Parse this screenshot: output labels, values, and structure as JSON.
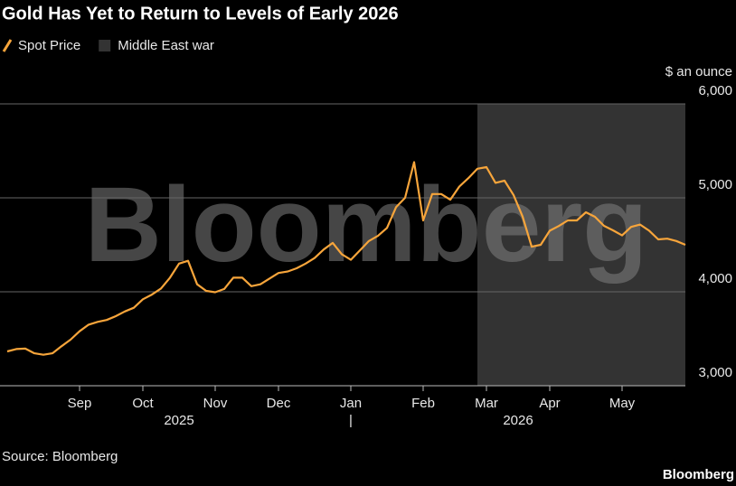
{
  "chart_data": {
    "type": "line",
    "title": "Gold Has Yet to Return to Levels of Early 2026",
    "y_axis_label": "$ an ounce",
    "source": "Source: Bloomberg",
    "logo": "Bloomberg",
    "watermark": "Bloomberg",
    "year_labels": [
      "2025",
      "|",
      "2026"
    ],
    "categories": [
      null,
      null,
      null,
      null,
      null,
      null,
      null,
      null,
      "Sep",
      null,
      null,
      null,
      null,
      null,
      null,
      "Oct",
      null,
      null,
      null,
      null,
      null,
      null,
      null,
      "Nov",
      null,
      null,
      null,
      null,
      null,
      null,
      "Dec",
      null,
      null,
      null,
      null,
      null,
      null,
      null,
      "Jan",
      null,
      null,
      null,
      null,
      null,
      null,
      null,
      "Feb",
      null,
      null,
      null,
      null,
      null,
      null,
      "Mar",
      null,
      null,
      null,
      null,
      null,
      null,
      "Apr",
      null,
      null,
      null,
      null,
      null,
      null,
      null,
      "May",
      null,
      null,
      null,
      null,
      null,
      null,
      null
    ],
    "series": [
      {
        "name": "Spot Price",
        "color": "#f7a53b",
        "values": [
          3365,
          3390,
          3395,
          3345,
          3330,
          3345,
          3420,
          3490,
          3580,
          3650,
          3680,
          3700,
          3740,
          3790,
          3830,
          3920,
          3970,
          4035,
          4150,
          4300,
          4330,
          4080,
          4010,
          3995,
          4030,
          4150,
          4150,
          4060,
          4080,
          4140,
          4200,
          4215,
          4250,
          4300,
          4360,
          4450,
          4520,
          4400,
          4340,
          4440,
          4540,
          4595,
          4680,
          4900,
          5000,
          5380,
          4760,
          5040,
          5040,
          4980,
          5120,
          5210,
          5310,
          5327,
          5160,
          5183,
          5030,
          4800,
          4480,
          4500,
          4650,
          4700,
          4760,
          4760,
          4846,
          4798,
          4702,
          4654,
          4600,
          4690,
          4715,
          4650,
          4558,
          4565,
          4540,
          4500
        ]
      }
    ],
    "bands": [
      {
        "name": "Middle East war",
        "from": 52,
        "to": 75,
        "color": "#333333"
      }
    ],
    "ylim": [
      3000,
      6000
    ],
    "yticks": [
      {
        "value": 3000,
        "label": "3,000"
      },
      {
        "value": 4000,
        "label": "4,000"
      },
      {
        "value": 5000,
        "label": "5,000"
      },
      {
        "value": 6000,
        "label": "6,000"
      }
    ],
    "grid": true
  }
}
